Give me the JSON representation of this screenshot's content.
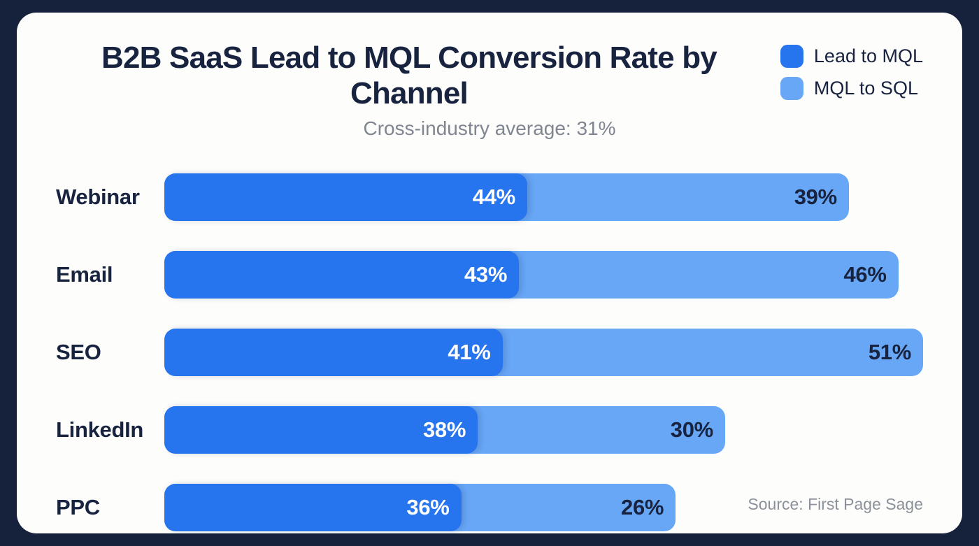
{
  "page": {
    "background_color": "#16213c",
    "card_color": "#fdfdfb"
  },
  "chart": {
    "title": "B2B SaaS Lead to MQL Conversion Rate by Channel",
    "subtitle": "Cross-industry average: 31%",
    "source": "Source: First Page Sage",
    "legend": [
      {
        "label": "Lead to MQL",
        "color": "#2674ee"
      },
      {
        "label": "MQL to SQL",
        "color": "#68a7f6"
      }
    ]
  },
  "chart_data": {
    "type": "bar",
    "orientation": "horizontal-stacked",
    "title": "B2B SaaS Lead to MQL Conversion Rate by Channel",
    "subtitle": "Cross-industry average: 31%",
    "categories": [
      "Webinar",
      "Email",
      "SEO",
      "LinkedIn",
      "PPC"
    ],
    "series": [
      {
        "name": "Lead to MQL",
        "color": "#2674ee",
        "values": [
          44,
          43,
          41,
          38,
          36
        ]
      },
      {
        "name": "MQL to SQL",
        "color": "#68a7f6",
        "values": [
          39,
          46,
          51,
          30,
          26
        ]
      }
    ],
    "value_suffix": "%",
    "xmax": 92,
    "grid": false,
    "legend_position": "top-right",
    "value_labels": "inside-end"
  }
}
